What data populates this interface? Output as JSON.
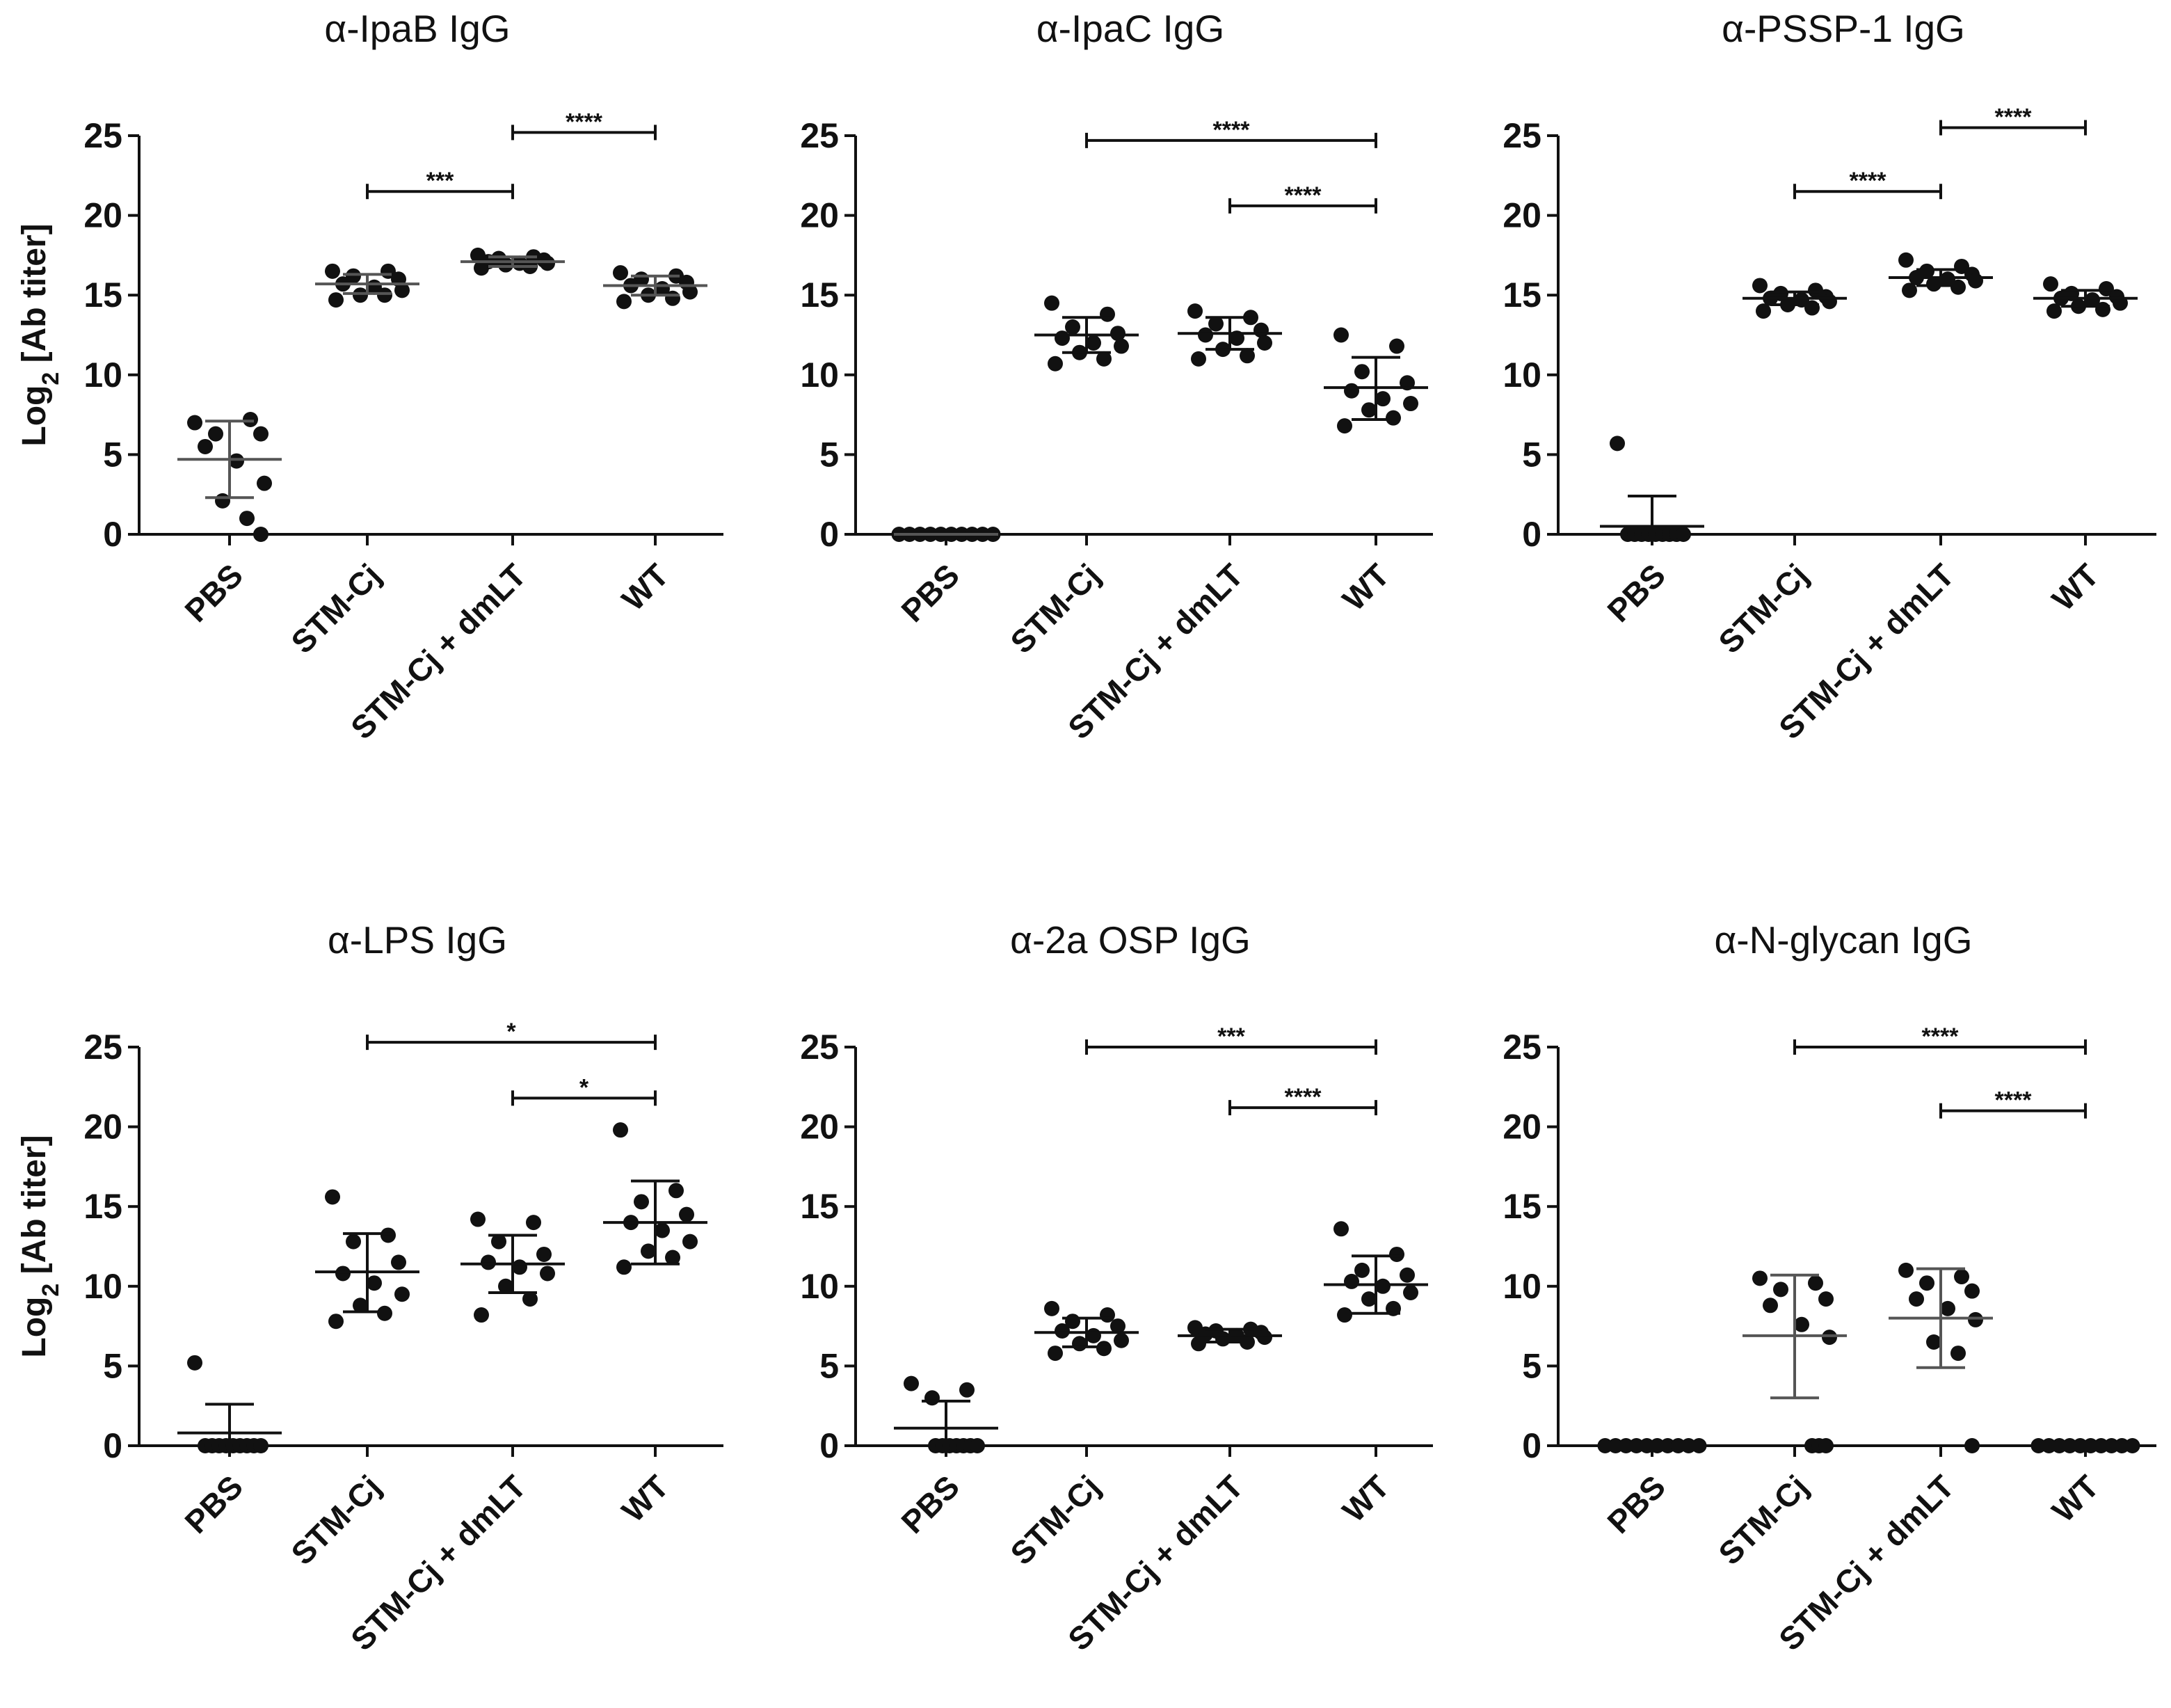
{
  "figure": {
    "ylabel_main": "Log",
    "ylabel_sub": "2",
    "ylabel_rest": " [Ab titer]"
  },
  "chart_data": [
    {
      "type": "scatter",
      "title": "α-IpaB IgG",
      "ylabel": "Log2 [Ab titer]",
      "ylim": [
        0,
        25
      ],
      "yticks": [
        0,
        5,
        10,
        15,
        20,
        25
      ],
      "categories": [
        "PBS",
        "STM-Cj",
        "STM-Cj + dmLT",
        "WT"
      ],
      "groups": [
        {
          "points": [
            7.0,
            7.2,
            6.3,
            6.3,
            5.5,
            4.6,
            3.2,
            2.1,
            1.0,
            0.0
          ],
          "mean": 4.7,
          "sd": [
            2.3,
            7.1
          ],
          "color": "#555555"
        },
        {
          "points": [
            16.5,
            16.5,
            16.2,
            16.0,
            15.7,
            15.5,
            15.3,
            15.0,
            15.0,
            14.7
          ],
          "mean": 15.7,
          "sd": [
            15.1,
            16.3
          ],
          "color": "#555555"
        },
        {
          "points": [
            17.5,
            17.4,
            17.3,
            17.2,
            17.1,
            17.0,
            17.0,
            16.9,
            16.8,
            16.7
          ],
          "mean": 17.1,
          "sd": [
            16.8,
            17.4
          ],
          "color": "#555555"
        },
        {
          "points": [
            16.4,
            16.2,
            16.0,
            15.8,
            15.6,
            15.4,
            15.2,
            15.0,
            14.8,
            14.6
          ],
          "mean": 15.6,
          "sd": [
            15.0,
            16.2
          ],
          "color": "#555555"
        }
      ],
      "comparisons": [
        {
          "from": 1,
          "to": 2,
          "y": 21.5,
          "label": "***"
        },
        {
          "from": 2,
          "to": 3,
          "y": 25.2,
          "label": "****"
        }
      ]
    },
    {
      "type": "scatter",
      "title": "α-IpaC IgG",
      "ylabel": "",
      "ylim": [
        0,
        25
      ],
      "yticks": [
        0,
        5,
        10,
        15,
        20,
        25
      ],
      "categories": [
        "PBS",
        "STM-Cj",
        "STM-Cj + dmLT",
        "WT"
      ],
      "groups": [
        {
          "points": [
            0,
            0,
            0,
            0,
            0,
            0,
            0,
            0,
            0,
            0
          ],
          "mean": 0,
          "sd": [
            0,
            0
          ],
          "color": "#555555"
        },
        {
          "points": [
            14.5,
            13.8,
            13.0,
            12.6,
            12.3,
            12.0,
            11.8,
            11.4,
            11.0,
            10.7
          ],
          "mean": 12.5,
          "sd": [
            11.4,
            13.6
          ],
          "color": "#111111"
        },
        {
          "points": [
            14.0,
            13.6,
            13.2,
            12.8,
            12.5,
            12.3,
            12.0,
            11.6,
            11.2,
            11.0
          ],
          "mean": 12.6,
          "sd": [
            11.6,
            13.6
          ],
          "color": "#111111"
        },
        {
          "points": [
            12.5,
            11.8,
            10.2,
            9.5,
            9.0,
            8.5,
            8.2,
            7.8,
            7.3,
            6.8
          ],
          "mean": 9.2,
          "sd": [
            7.2,
            11.1
          ],
          "color": "#111111"
        }
      ],
      "comparisons": [
        {
          "from": 1,
          "to": 3,
          "y": 24.7,
          "label": "****"
        },
        {
          "from": 2,
          "to": 3,
          "y": 20.6,
          "label": "****"
        }
      ]
    },
    {
      "type": "scatter",
      "title": "α-PSSP-1 IgG",
      "ylabel": "",
      "ylim": [
        0,
        25
      ],
      "yticks": [
        0,
        5,
        10,
        15,
        20,
        25
      ],
      "categories": [
        "PBS",
        "STM-Cj",
        "STM-Cj + dmLT",
        "WT"
      ],
      "groups": [
        {
          "points": [
            5.7,
            0,
            0,
            0,
            0,
            0,
            0,
            0,
            0,
            0
          ],
          "mean": 0.5,
          "sd": [
            0,
            2.4
          ],
          "color": "#111111"
        },
        {
          "points": [
            15.6,
            15.3,
            15.1,
            14.9,
            14.8,
            14.7,
            14.6,
            14.4,
            14.2,
            14.0
          ],
          "mean": 14.8,
          "sd": [
            14.4,
            15.2
          ],
          "color": "#111111"
        },
        {
          "points": [
            17.2,
            16.8,
            16.5,
            16.3,
            16.1,
            16.0,
            15.9,
            15.7,
            15.5,
            15.3
          ],
          "mean": 16.1,
          "sd": [
            15.6,
            16.6
          ],
          "color": "#111111"
        },
        {
          "points": [
            15.7,
            15.4,
            15.1,
            14.9,
            14.8,
            14.7,
            14.5,
            14.3,
            14.1,
            14.0
          ],
          "mean": 14.8,
          "sd": [
            14.3,
            15.3
          ],
          "color": "#111111"
        }
      ],
      "comparisons": [
        {
          "from": 1,
          "to": 2,
          "y": 21.5,
          "label": "****"
        },
        {
          "from": 2,
          "to": 3,
          "y": 25.5,
          "label": "****"
        }
      ]
    },
    {
      "type": "scatter",
      "title": "α-LPS IgG",
      "ylabel": "Log2 [Ab titer]",
      "ylim": [
        0,
        25
      ],
      "yticks": [
        0,
        5,
        10,
        15,
        20,
        25
      ],
      "categories": [
        "PBS",
        "STM-Cj",
        "STM-Cj + dmLT",
        "WT"
      ],
      "groups": [
        {
          "points": [
            5.2,
            0,
            0,
            0,
            0,
            0,
            0,
            0,
            0,
            0
          ],
          "mean": 0.8,
          "sd": [
            0,
            2.6
          ],
          "color": "#111111"
        },
        {
          "points": [
            15.6,
            13.2,
            12.8,
            11.5,
            10.8,
            10.2,
            9.5,
            8.8,
            8.3,
            7.8
          ],
          "mean": 10.9,
          "sd": [
            8.4,
            13.3
          ],
          "color": "#111111"
        },
        {
          "points": [
            14.2,
            14.0,
            12.8,
            12.0,
            11.5,
            11.2,
            10.8,
            10.0,
            9.2,
            8.2
          ],
          "mean": 11.4,
          "sd": [
            9.6,
            13.2
          ],
          "color": "#111111"
        },
        {
          "points": [
            19.8,
            16.0,
            15.3,
            14.5,
            14.0,
            13.5,
            12.8,
            12.2,
            11.8,
            11.2
          ],
          "mean": 14.0,
          "sd": [
            11.4,
            16.6
          ],
          "color": "#111111"
        }
      ],
      "comparisons": [
        {
          "from": 1,
          "to": 3,
          "y": 25.3,
          "label": "*"
        },
        {
          "from": 2,
          "to": 3,
          "y": 21.8,
          "label": "*"
        }
      ]
    },
    {
      "type": "scatter",
      "title": "α-2a OSP IgG",
      "ylabel": "",
      "ylim": [
        0,
        25
      ],
      "yticks": [
        0,
        5,
        10,
        15,
        20,
        25
      ],
      "categories": [
        "PBS",
        "STM-Cj",
        "STM-Cj + dmLT",
        "WT"
      ],
      "groups": [
        {
          "points": [
            3.9,
            3.5,
            3.0,
            0,
            0,
            0,
            0,
            0,
            0,
            0
          ],
          "mean": 1.1,
          "sd": [
            0,
            2.8
          ],
          "color": "#111111"
        },
        {
          "points": [
            8.6,
            8.2,
            7.8,
            7.5,
            7.2,
            6.9,
            6.6,
            6.4,
            6.1,
            5.8
          ],
          "mean": 7.1,
          "sd": [
            6.2,
            8.0
          ],
          "color": "#111111"
        },
        {
          "points": [
            7.4,
            7.3,
            7.2,
            7.1,
            7.0,
            6.9,
            6.8,
            6.7,
            6.5,
            6.4
          ],
          "mean": 6.9,
          "sd": [
            6.5,
            7.3
          ],
          "color": "#111111"
        },
        {
          "points": [
            13.6,
            12.0,
            11.0,
            10.7,
            10.3,
            10.0,
            9.6,
            9.2,
            8.6,
            8.2
          ],
          "mean": 10.1,
          "sd": [
            8.3,
            11.9
          ],
          "color": "#111111"
        }
      ],
      "comparisons": [
        {
          "from": 1,
          "to": 3,
          "y": 25.0,
          "label": "***"
        },
        {
          "from": 2,
          "to": 3,
          "y": 21.2,
          "label": "****"
        }
      ]
    },
    {
      "type": "scatter",
      "title": "α-N-glycan IgG",
      "ylabel": "",
      "ylim": [
        0,
        25
      ],
      "yticks": [
        0,
        5,
        10,
        15,
        20,
        25
      ],
      "categories": [
        "PBS",
        "STM-Cj",
        "STM-Cj + dmLT",
        "WT"
      ],
      "groups": [
        {
          "points": [
            0,
            0,
            0,
            0,
            0,
            0,
            0,
            0,
            0,
            0
          ],
          "mean": 0,
          "sd": [
            0,
            0
          ],
          "color": "#111111"
        },
        {
          "points": [
            10.5,
            10.2,
            9.8,
            9.2,
            8.8,
            7.6,
            6.8,
            0,
            0,
            0
          ],
          "mean": 6.9,
          "sd": [
            3.0,
            10.7
          ],
          "color": "#555555"
        },
        {
          "points": [
            11.0,
            10.6,
            10.2,
            9.7,
            9.2,
            8.6,
            7.9,
            6.5,
            5.8,
            0
          ],
          "mean": 8.0,
          "sd": [
            4.9,
            11.1
          ],
          "color": "#555555"
        },
        {
          "points": [
            0,
            0,
            0,
            0,
            0,
            0,
            0,
            0,
            0,
            0
          ],
          "mean": 0,
          "sd": [
            0,
            0
          ],
          "color": "#111111"
        }
      ],
      "comparisons": [
        {
          "from": 1,
          "to": 3,
          "y": 25.0,
          "label": "****"
        },
        {
          "from": 2,
          "to": 3,
          "y": 21.0,
          "label": "****"
        }
      ]
    }
  ]
}
